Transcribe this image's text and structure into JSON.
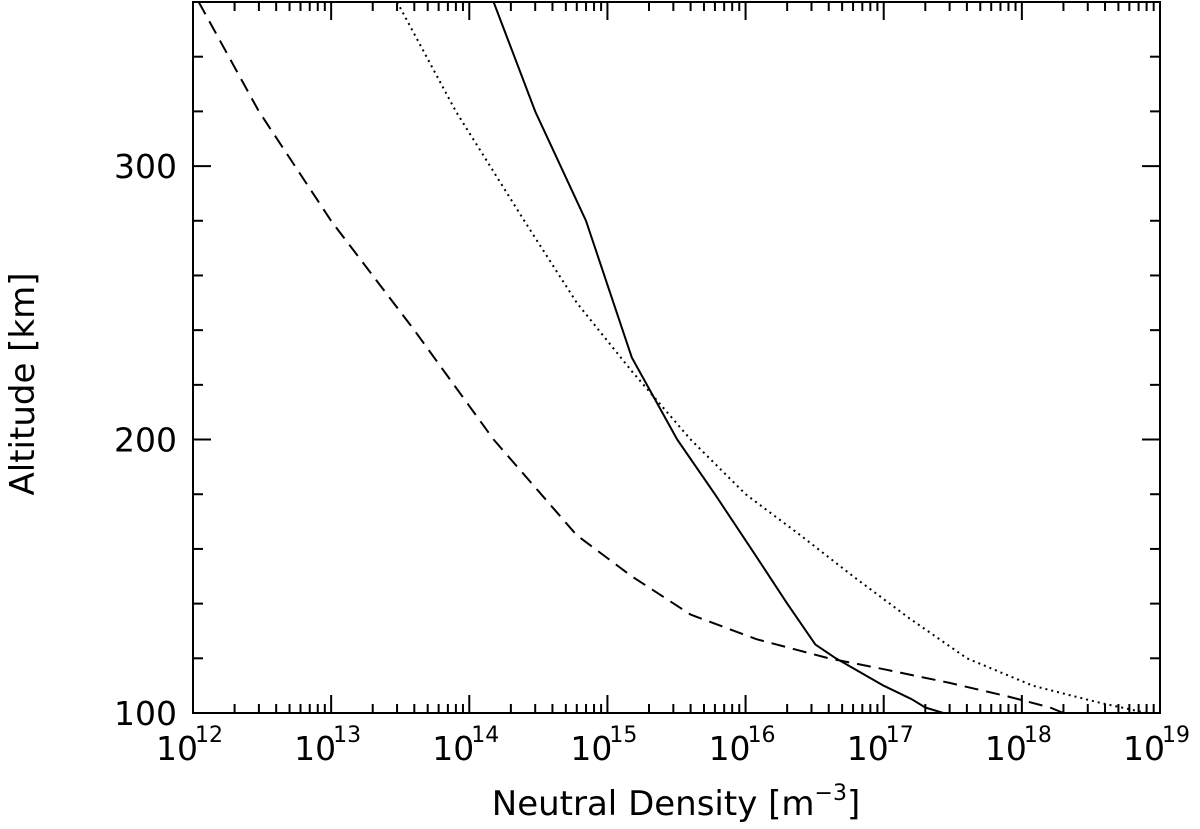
{
  "chart_data": {
    "type": "line",
    "xscale": "log",
    "xlim": [
      1000000000000.0,
      1e+19
    ],
    "ylim": [
      100,
      360
    ],
    "xlabel": "Neutral Density [m⁻³]",
    "xlabel_parts": {
      "main": "Neutral Density ",
      "open": "[",
      "unit": "m",
      "sup": "−3",
      "close": "]"
    },
    "ylabel": "Altitude [km]",
    "xtick_labels": [
      {
        "base": "10",
        "exp": "12",
        "value": 1000000000000.0
      },
      {
        "base": "10",
        "exp": "13",
        "value": 10000000000000.0
      },
      {
        "base": "10",
        "exp": "14",
        "value": 100000000000000.0
      },
      {
        "base": "10",
        "exp": "15",
        "value": 1000000000000000.0
      },
      {
        "base": "10",
        "exp": "16",
        "value": 1e+16
      },
      {
        "base": "10",
        "exp": "17",
        "value": 1e+17
      },
      {
        "base": "10",
        "exp": "18",
        "value": 1e+18
      },
      {
        "base": "10",
        "exp": "19",
        "value": 1e+19
      }
    ],
    "ytick_labels": [
      {
        "label": "100",
        "value": 100
      },
      {
        "label": "200",
        "value": 200
      },
      {
        "label": "300",
        "value": 300
      }
    ],
    "grid": false,
    "series": [
      {
        "style": "solid",
        "points": [
          [
            150000000000000.0,
            360
          ],
          [
            300000000000000.0,
            320
          ],
          [
            700000000000000.0,
            280
          ],
          [
            1500000000000000.0,
            230
          ],
          [
            3200000000000000.0,
            200
          ],
          [
            6000000000000000.0,
            180
          ],
          [
            1.1e+16,
            160
          ],
          [
            2e+16,
            140
          ],
          [
            3.2e+16,
            125
          ],
          [
            4.5e+16,
            120
          ],
          [
            1e+17,
            110
          ],
          [
            1.6e+17,
            105
          ],
          [
            2e+17,
            102
          ],
          [
            2.7e+17,
            100
          ]
        ]
      },
      {
        "style": "dotted",
        "points": [
          [
            30000000000000.0,
            360
          ],
          [
            80000000000000.0,
            320
          ],
          [
            250000000000000.0,
            280
          ],
          [
            600000000000000.0,
            250
          ],
          [
            1500000000000000.0,
            225
          ],
          [
            4000000000000000.0,
            200
          ],
          [
            1e+16,
            180
          ],
          [
            2.5e+16,
            165
          ],
          [
            6e+16,
            150
          ],
          [
            1.5e+17,
            135
          ],
          [
            4e+17,
            120
          ],
          [
            1.2e+18,
            110
          ],
          [
            3.5e+18,
            104
          ],
          [
            8e+18,
            100
          ]
        ]
      },
      {
        "style": "dashed",
        "points": [
          [
            1100000000000.0,
            360
          ],
          [
            3000000000000.0,
            320
          ],
          [
            10000000000000.0,
            280
          ],
          [
            40000000000000.0,
            240
          ],
          [
            150000000000000.0,
            200
          ],
          [
            600000000000000.0,
            165
          ],
          [
            1500000000000000.0,
            150
          ],
          [
            4000000000000000.0,
            136
          ],
          [
            1.2e+16,
            127
          ],
          [
            4e+16,
            120
          ],
          [
            1e+17,
            116
          ],
          [
            3e+17,
            111
          ],
          [
            8e+17,
            106
          ],
          [
            1.6e+18,
            102
          ],
          [
            2e+18,
            100
          ]
        ]
      }
    ]
  }
}
